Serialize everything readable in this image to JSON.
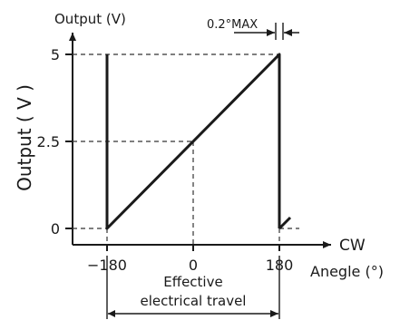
{
  "chart_data": {
    "type": "line",
    "title": "",
    "y_title_top": "Output (V)",
    "ylabel": "Output ( V )",
    "xlabel": "Anegle (°)",
    "x_direction_label": "CW",
    "x_ticks": [
      "-180",
      "0",
      "180"
    ],
    "y_ticks": [
      "0",
      "2.5",
      "5"
    ],
    "xlim": [
      -180,
      180
    ],
    "ylim": [
      0,
      5
    ],
    "grid": false,
    "series": [
      {
        "x": [
          -180,
          -180,
          180,
          180
        ],
        "y": [
          5,
          0,
          5,
          0
        ]
      }
    ],
    "annotations": {
      "max_label": "0.2°MAX",
      "travel_label_line1": "Effective",
      "travel_label_line2": "electrical travel"
    }
  }
}
